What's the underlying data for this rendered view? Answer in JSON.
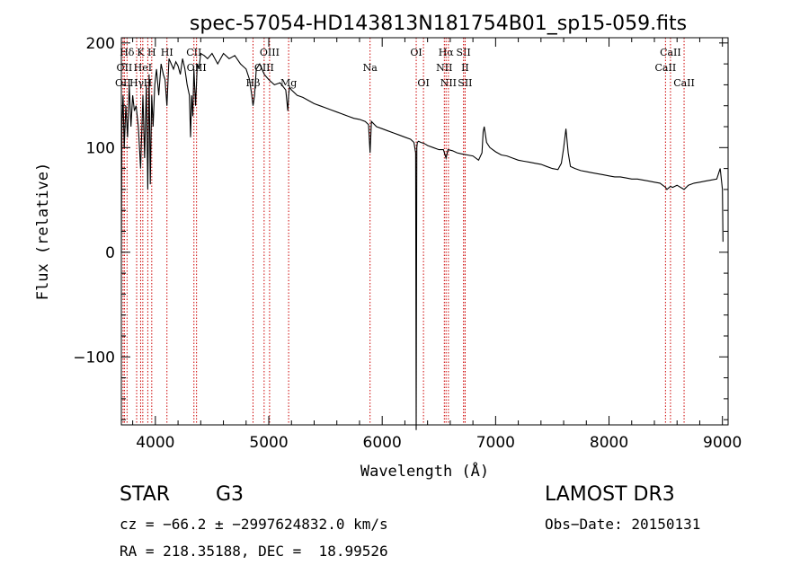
{
  "chart_data": {
    "type": "line",
    "title": "spec-57054-HD143813N181754B01_sp15-059.fits",
    "xlabel": "Wavelength (Å)",
    "ylabel": "Flux (relative)",
    "xlim": [
      3700,
      9050
    ],
    "ylim": [
      -165,
      205
    ],
    "xticks": [
      4000,
      5000,
      6000,
      7000,
      8000,
      9000
    ],
    "xtick_labels": [
      "4000",
      "5000",
      "6000",
      "7000",
      "8000",
      "9000"
    ],
    "yticks": [
      -100,
      0,
      100,
      200
    ],
    "ytick_labels": [
      "−100",
      "0",
      "100",
      "200"
    ],
    "grid": false,
    "series": [
      {
        "name": "spectrum",
        "x": [
          3700,
          3705,
          3715,
          3725,
          3740,
          3755,
          3770,
          3785,
          3800,
          3815,
          3830,
          3850,
          3870,
          3890,
          3905,
          3920,
          3933,
          3945,
          3955,
          3968,
          3980,
          3995,
          4010,
          4030,
          4050,
          4070,
          4085,
          4102,
          4120,
          4140,
          4160,
          4180,
          4200,
          4220,
          4240,
          4260,
          4280,
          4300,
          4310,
          4320,
          4330,
          4340,
          4355,
          4370,
          4385,
          4400,
          4430,
          4460,
          4500,
          4550,
          4600,
          4650,
          4700,
          4750,
          4800,
          4830,
          4850,
          4861,
          4875,
          4890,
          4920,
          4960,
          5000,
          5050,
          5100,
          5150,
          5168,
          5175,
          5183,
          5200,
          5250,
          5300,
          5350,
          5400,
          5450,
          5500,
          5550,
          5600,
          5650,
          5700,
          5750,
          5800,
          5850,
          5880,
          5893,
          5905,
          5950,
          6000,
          6050,
          6100,
          6150,
          6200,
          6250,
          6280,
          6295,
          6300,
          6305,
          6310,
          6320,
          6340,
          6370,
          6400,
          6450,
          6500,
          6540,
          6563,
          6580,
          6620,
          6660,
          6700,
          6750,
          6800,
          6850,
          6880,
          6890,
          6900,
          6920,
          6950,
          7000,
          7050,
          7100,
          7150,
          7200,
          7250,
          7300,
          7350,
          7400,
          7450,
          7500,
          7550,
          7580,
          7600,
          7620,
          7640,
          7660,
          7700,
          7750,
          7800,
          7850,
          7900,
          7950,
          8000,
          8050,
          8100,
          8150,
          8200,
          8250,
          8300,
          8350,
          8400,
          8450,
          8498,
          8510,
          8542,
          8560,
          8600,
          8662,
          8700,
          8750,
          8800,
          8850,
          8900,
          8950,
          8980,
          9000,
          9005
        ],
        "y": [
          0,
          120,
          150,
          100,
          140,
          110,
          160,
          120,
          150,
          135,
          140,
          120,
          80,
          150,
          90,
          160,
          60,
          170,
          65,
          150,
          120,
          160,
          175,
          150,
          180,
          170,
          165,
          140,
          185,
          180,
          175,
          182,
          178,
          170,
          185,
          175,
          160,
          150,
          110,
          150,
          130,
          175,
          140,
          180,
          175,
          190,
          188,
          185,
          190,
          180,
          190,
          185,
          188,
          180,
          175,
          165,
          150,
          140,
          150,
          175,
          180,
          170,
          165,
          160,
          162,
          155,
          135,
          150,
          158,
          155,
          150,
          148,
          145,
          142,
          140,
          138,
          136,
          134,
          132,
          130,
          128,
          127,
          125,
          122,
          95,
          125,
          120,
          118,
          116,
          114,
          112,
          110,
          108,
          105,
          95,
          -170,
          100,
          105,
          106,
          105,
          104,
          102,
          100,
          98,
          98,
          90,
          98,
          97,
          95,
          94,
          93,
          92,
          88,
          95,
          115,
          120,
          105,
          100,
          96,
          93,
          92,
          90,
          88,
          87,
          86,
          85,
          84,
          82,
          80,
          79,
          85,
          100,
          118,
          95,
          82,
          80,
          78,
          77,
          76,
          75,
          74,
          73,
          72,
          72,
          71,
          70,
          70,
          69,
          68,
          67,
          66,
          62,
          60,
          63,
          62,
          64,
          60,
          64,
          66,
          67,
          68,
          69,
          70,
          80,
          60,
          10
        ],
        "color": "#000000"
      }
    ],
    "line_markers": [
      {
        "label": "Hδ",
        "x": 3750,
        "row": 1
      },
      {
        "label": "K",
        "x": 3870,
        "row": 1
      },
      {
        "label": "H",
        "x": 3968,
        "row": 1
      },
      {
        "label": "HI",
        "x": 4102,
        "row": 1
      },
      {
        "label": "CII",
        "x": 4340,
        "row": 1
      },
      {
        "label": "OII",
        "x": 3727,
        "row": 2
      },
      {
        "label": "HeI",
        "x": 3889,
        "row": 2
      },
      {
        "label": "OIII",
        "x": 4363,
        "row": 2
      },
      {
        "label": "OII",
        "x": 3715,
        "row": 3
      },
      {
        "label": "Hγ",
        "x": 3835,
        "row": 3
      },
      {
        "label": "H",
        "x": 3933,
        "row": 3
      },
      {
        "label": "OIII",
        "x": 5007,
        "row": 1
      },
      {
        "label": "OIII",
        "x": 4959,
        "row": 2
      },
      {
        "label": "Hβ",
        "x": 4861,
        "row": 3
      },
      {
        "label": "Mg",
        "x": 5175,
        "row": 3
      },
      {
        "label": "Na",
        "x": 5893,
        "row": 2
      },
      {
        "label": "OI",
        "x": 6300,
        "row": 1
      },
      {
        "label": "OI",
        "x": 6364,
        "row": 3
      },
      {
        "label": "Hα",
        "x": 6563,
        "row": 1
      },
      {
        "label": "SII",
        "x": 6717,
        "row": 1
      },
      {
        "label": "NII",
        "x": 6548,
        "row": 2
      },
      {
        "label": "II",
        "x": 6731,
        "row": 2
      },
      {
        "label": "NII",
        "x": 6584,
        "row": 3
      },
      {
        "label": "SII",
        "x": 6731,
        "row": 3
      },
      {
        "label": "CaII",
        "x": 8542,
        "row": 1
      },
      {
        "label": "CaII",
        "x": 8498,
        "row": 2
      },
      {
        "label": "CaII",
        "x": 8662,
        "row": 3
      }
    ]
  },
  "info": {
    "object_class": "STAR",
    "subclass": "G3",
    "survey": "LAMOST DR3",
    "redshift_line": "cz = −66.2 ± −2997624832.0 km/s",
    "obs_date_line": "Obs−Date: 20150131",
    "coords_line": "RA = 218.35188, DEC =  18.99526"
  }
}
